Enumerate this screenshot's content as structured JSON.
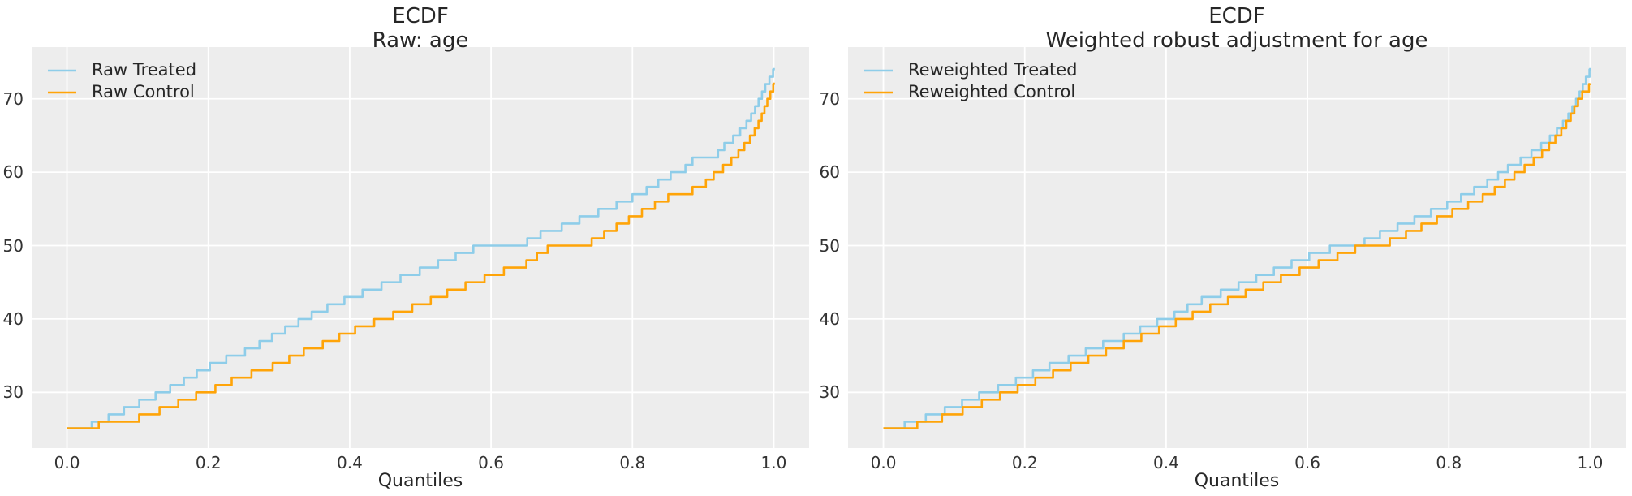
{
  "figure": {
    "background": "#ffffff",
    "plot_background": "#ededed",
    "grid_color": "#ffffff",
    "treated_color": "#8ecde9",
    "control_color": "#ffa408",
    "text_color": "#262626"
  },
  "chart_data": [
    {
      "type": "line",
      "subtype": "ecdf-steps",
      "title": "ECDF",
      "subtitle": "Raw: age",
      "xlabel": "Quantiles",
      "ylabel": "",
      "xlim": [
        -0.05,
        1.05
      ],
      "ylim": [
        22.4,
        77.05
      ],
      "xtick_labels": [
        "0.0",
        "0.2",
        "0.4",
        "0.6",
        "0.8",
        "1.0"
      ],
      "xtick_values": [
        0.0,
        0.2,
        0.4,
        0.6,
        0.8,
        1.0
      ],
      "ytick_labels": [
        "30",
        "40",
        "50",
        "60",
        "70"
      ],
      "ytick_values": [
        30,
        40,
        50,
        60,
        70
      ],
      "grid": true,
      "legend_position": "upper-left",
      "series": [
        {
          "name": "Raw Treated",
          "color_key": "treated_color",
          "points": [
            [
              0.0,
              25.1
            ],
            [
              0.035,
              26.0
            ],
            [
              0.05,
              26.6
            ],
            [
              0.07,
              27.5
            ],
            [
              0.1,
              28.9
            ],
            [
              0.13,
              30.2
            ],
            [
              0.16,
              31.7
            ],
            [
              0.2,
              33.9
            ],
            [
              0.23,
              35.2
            ],
            [
              0.26,
              36.3
            ],
            [
              0.29,
              38.0
            ],
            [
              0.32,
              39.6
            ],
            [
              0.35,
              41.2
            ],
            [
              0.38,
              42.5
            ],
            [
              0.41,
              43.7
            ],
            [
              0.445,
              45.0
            ],
            [
              0.48,
              46.3
            ],
            [
              0.51,
              47.4
            ],
            [
              0.545,
              48.8
            ],
            [
              0.575,
              50.0
            ],
            [
              0.64,
              50.4
            ],
            [
              0.67,
              52.0
            ],
            [
              0.7,
              53.0
            ],
            [
              0.73,
              54.2
            ],
            [
              0.76,
              55.3
            ],
            [
              0.79,
              56.5
            ],
            [
              0.82,
              58.0
            ],
            [
              0.85,
              59.8
            ],
            [
              0.875,
              61.0
            ],
            [
              0.885,
              62.0
            ],
            [
              0.915,
              62.3
            ],
            [
              0.93,
              64.0
            ],
            [
              0.945,
              65.2
            ],
            [
              0.96,
              66.8
            ],
            [
              0.97,
              68.3
            ],
            [
              0.98,
              70.3
            ],
            [
              0.988,
              72.0
            ],
            [
              0.995,
              73.2
            ],
            [
              1.0,
              74.2
            ]
          ]
        },
        {
          "name": "Raw Control",
          "color_key": "control_color",
          "points": [
            [
              0.0,
              25.1
            ],
            [
              0.045,
              26.0
            ],
            [
              0.09,
              26.6
            ],
            [
              0.12,
              27.6
            ],
            [
              0.15,
              28.7
            ],
            [
              0.18,
              29.9
            ],
            [
              0.21,
              31.0
            ],
            [
              0.24,
              32.3
            ],
            [
              0.27,
              33.3
            ],
            [
              0.3,
              34.3
            ],
            [
              0.335,
              36.0
            ],
            [
              0.37,
              37.3
            ],
            [
              0.405,
              38.9
            ],
            [
              0.44,
              40.2
            ],
            [
              0.475,
              41.5
            ],
            [
              0.51,
              42.8
            ],
            [
              0.545,
              44.3
            ],
            [
              0.58,
              45.6
            ],
            [
              0.615,
              46.9
            ],
            [
              0.65,
              48.0
            ],
            [
              0.68,
              50.0
            ],
            [
              0.73,
              50.3
            ],
            [
              0.76,
              52.0
            ],
            [
              0.795,
              54.0
            ],
            [
              0.83,
              55.9
            ],
            [
              0.86,
              57.5
            ],
            [
              0.895,
              58.2
            ],
            [
              0.915,
              60.0
            ],
            [
              0.935,
              61.5
            ],
            [
              0.95,
              63.0
            ],
            [
              0.965,
              64.8
            ],
            [
              0.975,
              66.3
            ],
            [
              0.983,
              68.0
            ],
            [
              0.99,
              69.8
            ],
            [
              0.996,
              71.2
            ],
            [
              1.0,
              72.2
            ]
          ]
        }
      ]
    },
    {
      "type": "line",
      "subtype": "ecdf-steps",
      "title": "ECDF",
      "subtitle": "Weighted robust adjustment for age",
      "xlabel": "Quantiles",
      "ylabel": "",
      "xlim": [
        -0.05,
        1.05
      ],
      "ylim": [
        22.4,
        77.05
      ],
      "xtick_labels": [
        "0.0",
        "0.2",
        "0.4",
        "0.6",
        "0.8",
        "1.0"
      ],
      "xtick_values": [
        0.0,
        0.2,
        0.4,
        0.6,
        0.8,
        1.0
      ],
      "ytick_labels": [
        "30",
        "40",
        "50",
        "60",
        "70"
      ],
      "ytick_values": [
        30,
        40,
        50,
        60,
        70
      ],
      "grid": true,
      "legend_position": "upper-left",
      "series": [
        {
          "name": "Reweighted Treated",
          "color_key": "treated_color",
          "points": [
            [
              0.0,
              25.1
            ],
            [
              0.03,
              26.0
            ],
            [
              0.06,
              27.0
            ],
            [
              0.095,
              28.3
            ],
            [
              0.13,
              29.8
            ],
            [
              0.165,
              31.1
            ],
            [
              0.2,
              32.5
            ],
            [
              0.235,
              34.0
            ],
            [
              0.27,
              35.3
            ],
            [
              0.305,
              36.8
            ],
            [
              0.34,
              38.0
            ],
            [
              0.375,
              39.5
            ],
            [
              0.41,
              40.9
            ],
            [
              0.445,
              42.8
            ],
            [
              0.48,
              44.1
            ],
            [
              0.515,
              45.5
            ],
            [
              0.55,
              46.9
            ],
            [
              0.585,
              48.3
            ],
            [
              0.615,
              49.5
            ],
            [
              0.635,
              50.1
            ],
            [
              0.67,
              50.5
            ],
            [
              0.7,
              51.9
            ],
            [
              0.735,
              53.3
            ],
            [
              0.77,
              54.8
            ],
            [
              0.8,
              56.1
            ],
            [
              0.825,
              57.4
            ],
            [
              0.843,
              58.4
            ],
            [
              0.862,
              59.4
            ],
            [
              0.88,
              60.8
            ],
            [
              0.9,
              61.9
            ],
            [
              0.92,
              63.2
            ],
            [
              0.94,
              64.7
            ],
            [
              0.955,
              66.2
            ],
            [
              0.968,
              67.8
            ],
            [
              0.978,
              69.6
            ],
            [
              0.986,
              71.2
            ],
            [
              0.993,
              72.8
            ],
            [
              1.0,
              74.2
            ]
          ]
        },
        {
          "name": "Reweighted Control",
          "color_key": "control_color",
          "points": [
            [
              0.0,
              25.1
            ],
            [
              0.048,
              26.0
            ],
            [
              0.08,
              26.9
            ],
            [
              0.115,
              28.1
            ],
            [
              0.15,
              29.4
            ],
            [
              0.185,
              30.8
            ],
            [
              0.22,
              32.2
            ],
            [
              0.255,
              33.6
            ],
            [
              0.29,
              35.0
            ],
            [
              0.325,
              36.4
            ],
            [
              0.36,
              37.8
            ],
            [
              0.395,
              39.2
            ],
            [
              0.43,
              40.7
            ],
            [
              0.465,
              42.1
            ],
            [
              0.5,
              43.5
            ],
            [
              0.535,
              44.9
            ],
            [
              0.57,
              46.3
            ],
            [
              0.605,
              47.6
            ],
            [
              0.64,
              48.9
            ],
            [
              0.67,
              50.1
            ],
            [
              0.705,
              50.5
            ],
            [
              0.735,
              51.8
            ],
            [
              0.77,
              53.4
            ],
            [
              0.805,
              55.0
            ],
            [
              0.843,
              56.7
            ],
            [
              0.87,
              58.3
            ],
            [
              0.89,
              59.8
            ],
            [
              0.91,
              61.2
            ],
            [
              0.93,
              62.8
            ],
            [
              0.945,
              64.3
            ],
            [
              0.96,
              66.1
            ],
            [
              0.971,
              67.7
            ],
            [
              0.98,
              69.5
            ],
            [
              0.988,
              70.9
            ],
            [
              0.995,
              71.8
            ],
            [
              1.0,
              72.1
            ]
          ]
        }
      ]
    }
  ]
}
